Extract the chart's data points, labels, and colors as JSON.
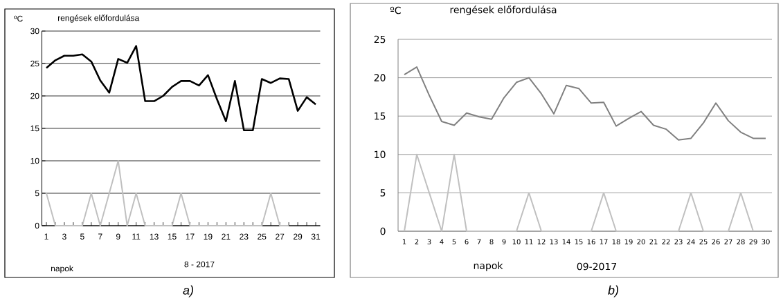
{
  "chart_data": [
    {
      "type": "line",
      "title": "rengések előfordulása",
      "ylabel": "ºC",
      "xlabel": "napok",
      "annotations": [
        "8 -  2017",
        "a)"
      ],
      "categories": [
        "1",
        null,
        "3",
        null,
        "5",
        null,
        "7",
        null,
        "9",
        null,
        "11",
        null,
        "13",
        null,
        "15",
        null,
        "17",
        null,
        "19",
        null,
        "21",
        null,
        "23",
        null,
        "25",
        null,
        "27",
        null,
        "29",
        null,
        "31"
      ],
      "series": [
        {
          "color": "#000000",
          "values": [
            24.3,
            25.5,
            26.2,
            26.2,
            26.4,
            25.3,
            22.4,
            20.5,
            25.7,
            25.1,
            27.7,
            19.2,
            19.2,
            20.0,
            21.4,
            22.3,
            22.3,
            21.6,
            23.2,
            19.5,
            16.1,
            22.3,
            14.7,
            14.7,
            22.6,
            22.0,
            22.7,
            22.6,
            17.7,
            19.8,
            18.7
          ]
        },
        {
          "color": "#c0c0c0",
          "values": [
            5,
            0,
            0,
            0,
            0,
            5,
            0,
            5,
            10,
            0,
            5,
            0,
            0,
            0,
            0,
            5,
            0,
            0,
            0,
            0,
            0,
            0,
            0,
            0,
            0,
            5,
            0,
            0,
            null,
            null,
            null
          ]
        }
      ],
      "ylim": [
        0,
        30
      ],
      "yticks": [
        0,
        5,
        10,
        15,
        20,
        25,
        30
      ],
      "grid": "y"
    },
    {
      "type": "line",
      "title": "rengések előfordulása",
      "ylabel": "ºC",
      "xlabel": "napok",
      "annotations": [
        "09-2017",
        "b)"
      ],
      "categories": [
        "1",
        "2",
        "3",
        "4",
        "5",
        "6",
        "7",
        "8",
        "9",
        "10",
        "11",
        "12",
        "13",
        "14",
        "15",
        "16",
        "17",
        "18",
        "19",
        "20",
        "21",
        "22",
        "23",
        "24",
        "25",
        "26",
        "27",
        "28",
        "29",
        "30"
      ],
      "series": [
        {
          "color": "#808080",
          "values": [
            20.4,
            21.4,
            17.7,
            14.3,
            13.8,
            15.4,
            14.9,
            14.6,
            17.4,
            19.4,
            20.0,
            17.9,
            15.3,
            19.0,
            18.6,
            16.7,
            16.8,
            13.7,
            14.7,
            15.6,
            13.8,
            13.3,
            11.9,
            12.1,
            14.1,
            16.7,
            14.4,
            12.9,
            12.1,
            12.1
          ]
        },
        {
          "color": "#c0c0c0",
          "values": [
            0,
            10,
            5,
            0,
            10,
            0,
            0,
            0,
            0,
            0,
            5,
            0,
            0,
            0,
            0,
            0,
            5,
            0,
            0,
            0,
            0,
            0,
            0,
            5,
            0,
            0,
            0,
            5,
            0,
            null
          ]
        }
      ],
      "ylim": [
        0,
        25
      ],
      "yticks": [
        0,
        5,
        10,
        15,
        20,
        25
      ],
      "grid": "y"
    }
  ]
}
